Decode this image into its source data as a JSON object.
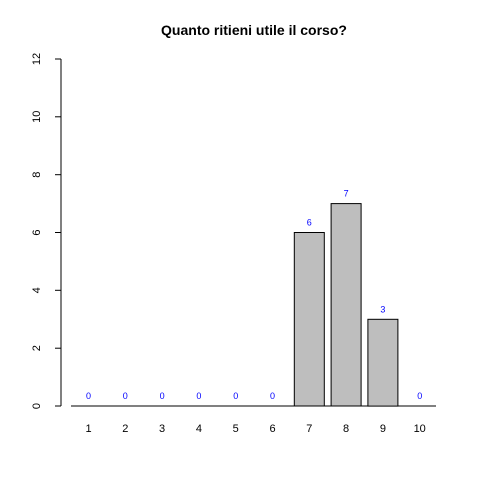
{
  "chart_data": {
    "type": "bar",
    "title": "Quanto ritieni utile il corso?",
    "xlabel": "",
    "ylabel": "",
    "categories": [
      "1",
      "2",
      "3",
      "4",
      "5",
      "6",
      "7",
      "8",
      "9",
      "10"
    ],
    "values": [
      0,
      0,
      0,
      0,
      0,
      0,
      6,
      7,
      3,
      0
    ],
    "ylim": [
      0,
      12
    ],
    "yticks": [
      "0",
      "2",
      "4",
      "6",
      "8",
      "10",
      "12"
    ],
    "data_labels": [
      "0",
      "0",
      "0",
      "0",
      "0",
      "0",
      "6",
      "7",
      "3",
      "0"
    ],
    "grid": false,
    "legend": "none"
  },
  "colors": {
    "bar_fill": "#bebebe",
    "bar_stroke": "#000000",
    "data_label": "#0000ff",
    "axis": "#000000",
    "background": "#ffffff"
  }
}
